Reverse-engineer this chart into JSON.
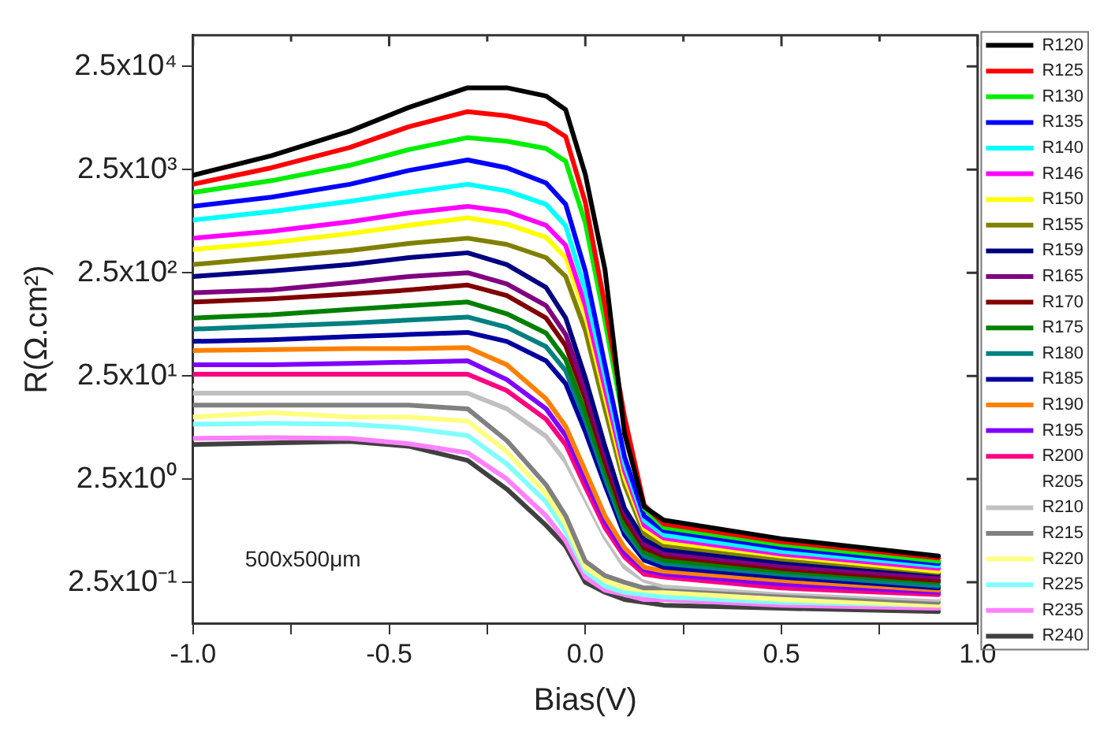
{
  "chart_data": {
    "type": "line",
    "xlabel": "Bias(V)",
    "ylabel": "R(Ω.cm²)",
    "log": "y",
    "grid": false,
    "legend": "right",
    "marker": "none",
    "line_style": "solid",
    "x": [
      -1,
      -0.8,
      -0.6,
      -0.45,
      -0.3,
      -0.2,
      -0.1,
      -0.05,
      0,
      0.05,
      0.1,
      0.15,
      0.2,
      0.5,
      0.9
    ],
    "xlim": [
      -1,
      1
    ],
    "xticks": [
      {
        "value": -1,
        "label": "-1.0"
      },
      {
        "value": -0.75,
        "label": null
      },
      {
        "value": -0.5,
        "label": "-0.5"
      },
      {
        "value": -0.25,
        "label": null
      },
      {
        "value": 0,
        "label": "0.0"
      },
      {
        "value": 0.25,
        "label": null
      },
      {
        "value": 0.5,
        "label": "0.5"
      },
      {
        "value": 0.75,
        "label": null
      },
      {
        "value": 1,
        "label": "1.0"
      }
    ],
    "ylim": [
      0.1,
      50000
    ],
    "yticks": [
      {
        "value": 0.25,
        "label": "2.5x10⁻¹"
      },
      {
        "value": 2.5,
        "label": "2.5x10⁰"
      },
      {
        "value": 25,
        "label": "2.5x10¹"
      },
      {
        "value": 250,
        "label": "2.5x10²"
      },
      {
        "value": 2500,
        "label": "2.5x10³"
      },
      {
        "value": 25000,
        "label": "2.5x10⁴"
      }
    ],
    "annotations": [
      "500x500μm"
    ],
    "series": [
      {
        "name": "R120",
        "color": "#000000",
        "values": [
          2200,
          3400,
          5900,
          10000,
          15500,
          15500,
          12900,
          9500,
          2240,
          270,
          6.9,
          1.35,
          1.0,
          0.66,
          0.45
        ]
      },
      {
        "name": "R125",
        "color": "#ff0000",
        "values": [
          1800,
          2600,
          4100,
          6500,
          9100,
          8300,
          6900,
          5200,
          1200,
          120,
          10,
          1.4,
          0.92,
          0.62,
          0.43
        ]
      },
      {
        "name": "R130",
        "color": "#00ee00",
        "values": [
          1500,
          1950,
          2750,
          3900,
          5100,
          4700,
          4000,
          3000,
          760,
          85,
          8.1,
          1.3,
          0.85,
          0.58,
          0.4
        ]
      },
      {
        "name": "R135",
        "color": "#0000ff",
        "values": [
          1100,
          1350,
          1800,
          2450,
          3100,
          2600,
          1850,
          1150,
          260,
          32,
          4.1,
          1.1,
          0.79,
          0.54,
          0.38
        ]
      },
      {
        "name": "R140",
        "color": "#00ffff",
        "values": [
          810,
          980,
          1230,
          1500,
          1800,
          1550,
          1150,
          710,
          170,
          25,
          3.5,
          1.0,
          0.72,
          0.5,
          0.36
        ]
      },
      {
        "name": "R146",
        "color": "#ff00ff",
        "values": [
          540,
          630,
          780,
          950,
          1100,
          980,
          720,
          460,
          120,
          19,
          3.0,
          0.89,
          0.67,
          0.47,
          0.34
        ]
      },
      {
        "name": "R150",
        "color": "#ffff00",
        "values": [
          420,
          490,
          600,
          720,
          850,
          740,
          550,
          350,
          98,
          16,
          2.6,
          0.83,
          0.62,
          0.45,
          0.32
        ]
      },
      {
        "name": "R155",
        "color": "#808000",
        "values": [
          300,
          350,
          410,
          480,
          540,
          470,
          350,
          230,
          69,
          12,
          2.2,
          0.74,
          0.57,
          0.42,
          0.31
        ]
      },
      {
        "name": "R159",
        "color": "#000080",
        "values": [
          230,
          260,
          300,
          350,
          390,
          300,
          180,
          91,
          24,
          5.2,
          1.3,
          0.65,
          0.52,
          0.39,
          0.3
        ]
      },
      {
        "name": "R165",
        "color": "#800080",
        "values": [
          160,
          170,
          200,
          230,
          250,
          195,
          120,
          63,
          18,
          4.4,
          1.2,
          0.59,
          0.48,
          0.36,
          0.28
        ]
      },
      {
        "name": "R170",
        "color": "#800000",
        "values": [
          130,
          140,
          155,
          170,
          190,
          150,
          91,
          49,
          15,
          3.7,
          1.05,
          0.54,
          0.45,
          0.34,
          0.26
        ]
      },
      {
        "name": "R175",
        "color": "#008000",
        "values": [
          91,
          98,
          110,
          120,
          130,
          100,
          65,
          36,
          11,
          3.1,
          0.91,
          0.49,
          0.41,
          0.32,
          0.25
        ]
      },
      {
        "name": "R180",
        "color": "#008080",
        "values": [
          71,
          76,
          81,
          87,
          93,
          74,
          48,
          28,
          9.3,
          2.6,
          0.81,
          0.45,
          0.38,
          0.3,
          0.23
        ]
      },
      {
        "name": "R185",
        "color": "#0000a0",
        "values": [
          54,
          56,
          60,
          63,
          66,
          54,
          35,
          21,
          7.2,
          2.2,
          0.72,
          0.41,
          0.35,
          0.28,
          0.22
        ]
      },
      {
        "name": "R190",
        "color": "#ff8000",
        "values": [
          44,
          45,
          46,
          46,
          47,
          32,
          15,
          8.1,
          3.0,
          1.1,
          0.54,
          0.35,
          0.32,
          0.26,
          0.21
        ]
      },
      {
        "name": "R195",
        "color": "#8000ff",
        "values": [
          32,
          32,
          33,
          34,
          35,
          23,
          12,
          6.6,
          2.5,
          0.98,
          0.48,
          0.33,
          0.3,
          0.24,
          0.2
        ]
      },
      {
        "name": "R200",
        "color": "#ff0080",
        "values": [
          26,
          26,
          26,
          26,
          26,
          18,
          9.5,
          5.4,
          2.1,
          0.85,
          0.44,
          0.3,
          0.28,
          0.22,
          0.19
        ]
      },
      {
        "name": "R205",
        "color": "#ffffff",
        "values": [
          20,
          20,
          20,
          20,
          20,
          14,
          7.8,
          4.4,
          1.8,
          0.76,
          0.4,
          0.28,
          0.25,
          0.21,
          0.18
        ]
      },
      {
        "name": "R210",
        "color": "#c0c0c0",
        "values": [
          17,
          17,
          17,
          17,
          17,
          12,
          6.5,
          3.7,
          1.6,
          0.68,
          0.35,
          0.26,
          0.23,
          0.2,
          0.17
        ]
      },
      {
        "name": "R215",
        "color": "#808080",
        "values": [
          13,
          13,
          13,
          13,
          12,
          5.9,
          2.2,
          1.1,
          0.4,
          0.29,
          0.25,
          0.22,
          0.22,
          0.19,
          0.16
        ]
      },
      {
        "name": "R220",
        "color": "#ffff80",
        "values": [
          10,
          11,
          10,
          10,
          9.1,
          4.6,
          1.8,
          0.91,
          0.35,
          0.26,
          0.22,
          0.21,
          0.2,
          0.17,
          0.15
        ]
      },
      {
        "name": "R225",
        "color": "#80ffff",
        "values": [
          8.5,
          8.7,
          8.5,
          7.8,
          6.6,
          3.5,
          1.5,
          0.78,
          0.32,
          0.23,
          0.2,
          0.19,
          0.18,
          0.16,
          0.15
        ]
      },
      {
        "name": "R235",
        "color": "#ff80ff",
        "values": [
          6.2,
          6.3,
          6.2,
          5.5,
          4.5,
          2.5,
          1.1,
          0.63,
          0.28,
          0.21,
          0.19,
          0.17,
          0.17,
          0.15,
          0.14
        ]
      },
      {
        "name": "R240",
        "color": "#404040",
        "values": [
          5.4,
          5.6,
          5.8,
          5.2,
          3.8,
          2.0,
          0.89,
          0.56,
          0.25,
          0.2,
          0.17,
          0.16,
          0.15,
          0.14,
          0.13
        ]
      }
    ]
  }
}
